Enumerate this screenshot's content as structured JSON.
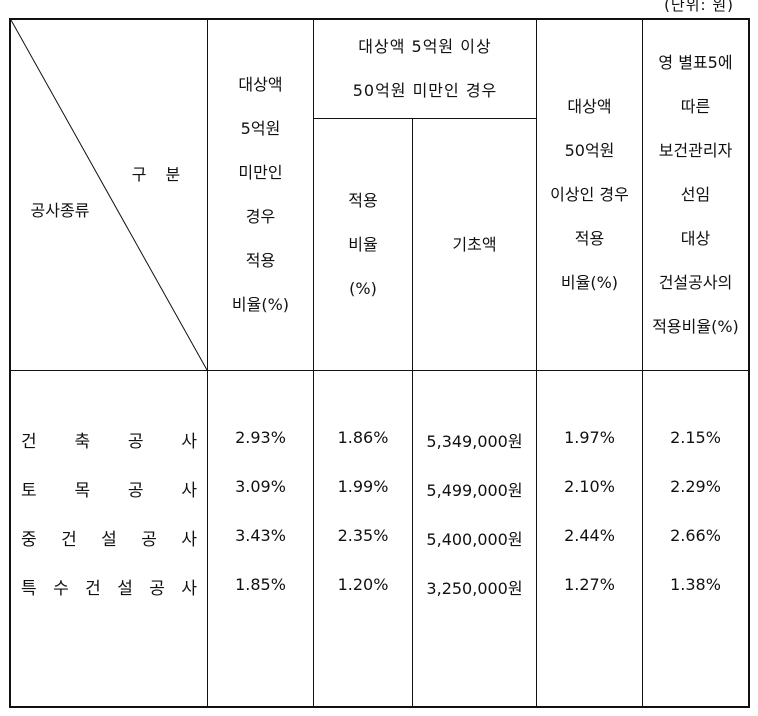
{
  "unit_note": "(단위: 원)",
  "header": {
    "corner_top": "구 분",
    "corner_bottom": "공사종류",
    "col1": "대상액\n5억원\n미만인\n경우\n적용\n비율(%)",
    "group_title": "대상액 5억원 이상\n50억원 미만인 경우",
    "col2": "적용\n비율\n(%)",
    "col3": "기초액",
    "col4": "대상액\n50억원\n이상인 경우\n적용\n비율(%)",
    "col5": "영 별표5에\n따른\n보건관리자\n선임\n대상\n건설공사의\n적용비율(%)"
  },
  "rows": [
    {
      "label_chars": [
        "건",
        "축",
        "공",
        "사"
      ],
      "c1": "2.93%",
      "c2": "1.86%",
      "c3": "5,349,000원",
      "c4": "1.97%",
      "c5": "2.15%"
    },
    {
      "label_chars": [
        "토",
        "목",
        "공",
        "사"
      ],
      "c1": "3.09%",
      "c2": "1.99%",
      "c3": "5,499,000원",
      "c4": "2.10%",
      "c5": "2.29%"
    },
    {
      "label_chars": [
        "중",
        "건",
        "설",
        "공",
        "사"
      ],
      "c1": "3.43%",
      "c2": "2.35%",
      "c3": "5,400,000원",
      "c4": "2.44%",
      "c5": "2.66%"
    },
    {
      "label_chars": [
        "특",
        "수",
        "건",
        "설",
        "공",
        "사"
      ],
      "c1": "1.85%",
      "c2": "1.20%",
      "c3": "3,250,000원",
      "c4": "1.27%",
      "c5": "1.38%"
    }
  ]
}
